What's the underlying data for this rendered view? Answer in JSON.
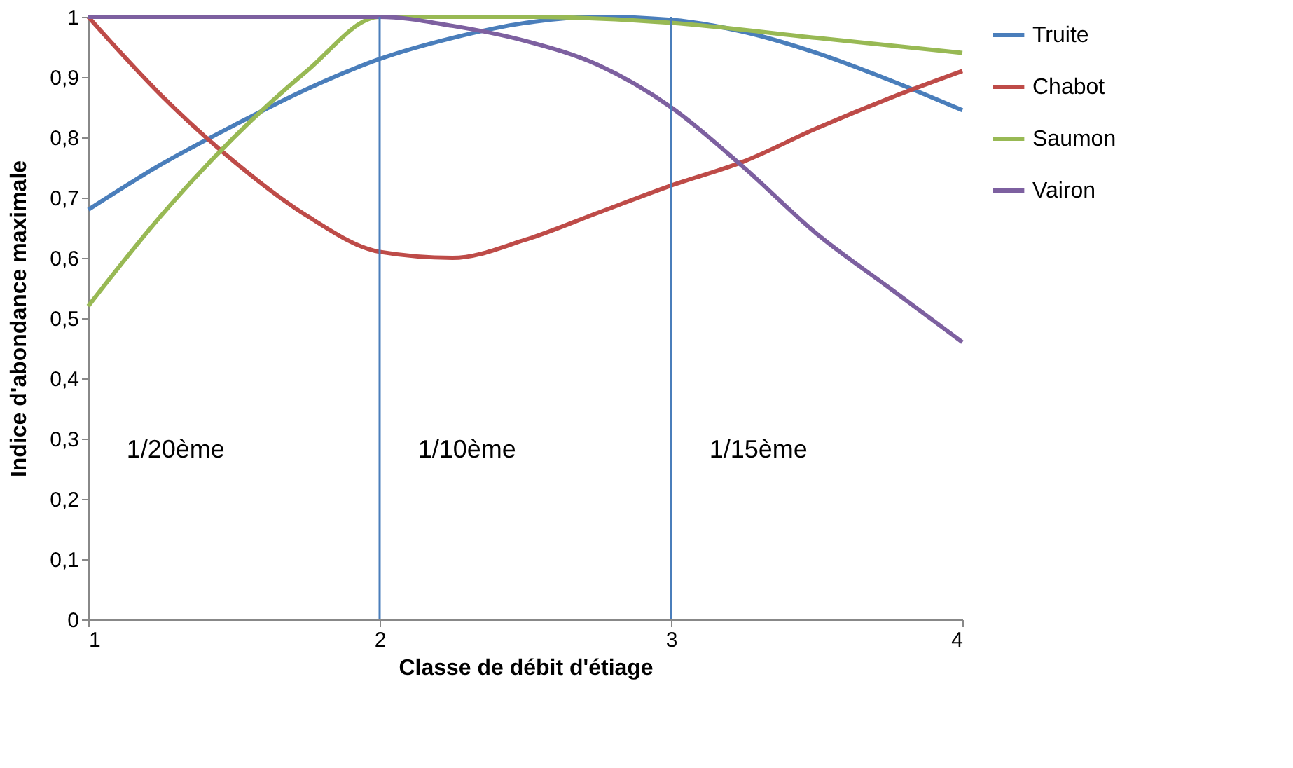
{
  "chart_data": {
    "type": "line",
    "xlabel": "Classe de débit d'étiage",
    "ylabel": "Indice d'abondance maximale",
    "series": [
      {
        "name": "Truite",
        "color": "#4a7ebb",
        "x": [
          1,
          1.25,
          1.5,
          1.75,
          2,
          2.25,
          2.5,
          2.75,
          3,
          3.25,
          3.5,
          3.75,
          4
        ],
        "values": [
          0.68,
          0.755,
          0.82,
          0.88,
          0.93,
          0.965,
          0.99,
          1.0,
          0.995,
          0.975,
          0.94,
          0.895,
          0.845
        ]
      },
      {
        "name": "Chabot",
        "color": "#be4b48",
        "x": [
          1,
          1.25,
          1.5,
          1.75,
          2,
          2.25,
          2.5,
          2.75,
          3,
          3.25,
          3.5,
          3.75,
          4
        ],
        "values": [
          1.0,
          0.87,
          0.76,
          0.67,
          0.61,
          0.6,
          0.63,
          0.675,
          0.72,
          0.76,
          0.815,
          0.865,
          0.91
        ]
      },
      {
        "name": "Saumon",
        "color": "#98b954",
        "x": [
          1,
          1.25,
          1.5,
          1.75,
          2,
          2.5,
          3,
          3.5,
          4
        ],
        "values": [
          0.52,
          0.67,
          0.8,
          0.91,
          1.0,
          1.0,
          0.99,
          0.965,
          0.94
        ]
      },
      {
        "name": "Vairon",
        "color": "#7d60a0",
        "x": [
          1,
          1.5,
          2,
          2.25,
          2.5,
          2.75,
          3,
          3.25,
          3.5,
          3.75,
          4
        ],
        "values": [
          1.0,
          1.0,
          1.0,
          0.985,
          0.96,
          0.92,
          0.85,
          0.75,
          0.64,
          0.55,
          0.46
        ]
      }
    ],
    "ref_lines": [
      {
        "axis": "x",
        "value": 2,
        "color": "#4a7ebb"
      },
      {
        "axis": "x",
        "value": 3,
        "color": "#4a7ebb"
      }
    ],
    "annotations": [
      "1/20ème",
      "1/10ème",
      "1/15ème"
    ],
    "xlim": [
      1,
      4
    ],
    "xticks": [
      1,
      2,
      3,
      4
    ],
    "ylim": [
      0,
      1
    ],
    "yticks": [
      0,
      {
        "value": 0.1,
        "label": "0,1"
      },
      {
        "value": 0.2,
        "label": "0,2"
      },
      {
        "value": 0.3,
        "label": "0,3"
      },
      {
        "value": 0.4,
        "label": "0,4"
      },
      {
        "value": 0.5,
        "label": "0,5"
      },
      {
        "value": 0.6,
        "label": "0,6"
      },
      {
        "value": 0.7,
        "label": "0,7"
      },
      {
        "value": 0.8,
        "label": "0,8"
      },
      {
        "value": 0.9,
        "label": "0,9"
      },
      1
    ],
    "grid": false,
    "legend": "right",
    "marker": "none",
    "line_style": "solid"
  }
}
